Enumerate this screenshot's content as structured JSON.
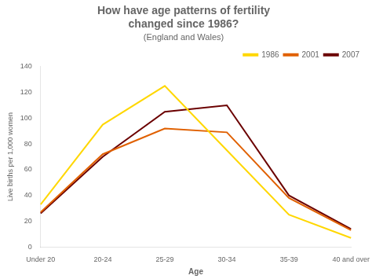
{
  "chart_data": {
    "type": "line",
    "title": "How have age patterns of fertility\nchanged since 1986?",
    "subtitle": "(England and Wales)",
    "x_label": "Age",
    "y_label": "Live births per 1,000 women",
    "categories": [
      "Under 20",
      "20-24",
      "25-29",
      "30-34",
      "35-39",
      "40 and over"
    ],
    "series": [
      {
        "name": "1986",
        "color": "#FFD700",
        "values": [
          33,
          95,
          125,
          75,
          25,
          7
        ]
      },
      {
        "name": "2001",
        "color": "#E06000",
        "values": [
          27,
          72,
          92,
          89,
          38,
          13
        ]
      },
      {
        "name": "2007",
        "color": "#6B0000",
        "values": [
          26,
          70,
          105,
          110,
          40,
          14
        ]
      }
    ],
    "ylim": [
      0,
      140
    ],
    "yticks": [
      0,
      20,
      40,
      60,
      80,
      100,
      120,
      140
    ],
    "grid": false,
    "legend": "upper right"
  }
}
